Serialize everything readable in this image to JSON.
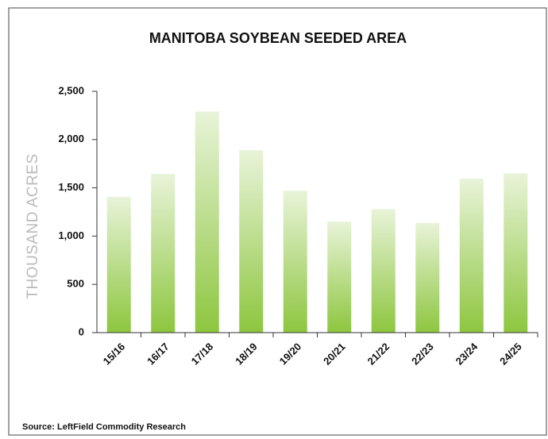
{
  "chart_data": {
    "type": "bar",
    "title": "MANITOBA SOYBEAN SEEDED AREA",
    "y_label": "THOUSAND ACRES",
    "source": "Source: LeftField Commodity Research",
    "categories": [
      "15/16",
      "16/17",
      "17/18",
      "18/19",
      "19/20",
      "20/21",
      "21/22",
      "22/23",
      "23/24",
      "24/25"
    ],
    "values": [
      1405,
      1645,
      2290,
      1890,
      1470,
      1150,
      1280,
      1135,
      1595,
      1650
    ],
    "color": "#8dc63f",
    "ylim": [
      0,
      2500
    ],
    "yticks": [
      0,
      500,
      {
        "value": 1000,
        "label": "1,000"
      },
      {
        "value": 1500,
        "label": "1,500"
      },
      {
        "value": 2000,
        "label": "2,000"
      },
      {
        "value": 2500,
        "label": "2,500"
      }
    ],
    "grid": false
  }
}
